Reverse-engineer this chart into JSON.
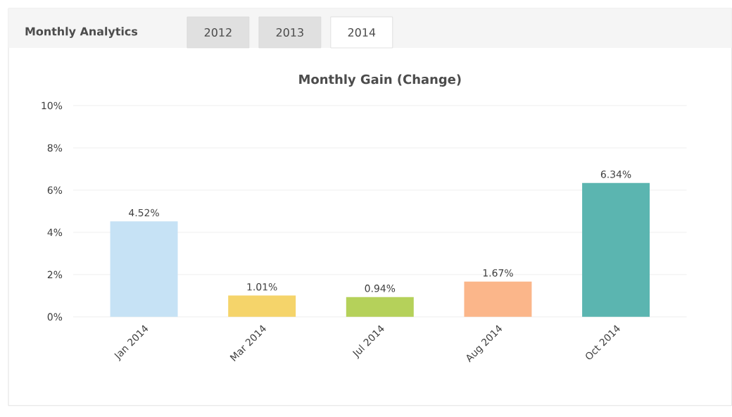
{
  "chart_data": {
    "type": "bar",
    "title": "Monthly Gain (Change)",
    "categories": [
      "Jan 2014",
      "Mar 2014",
      "Jul 2014",
      "Aug 2014",
      "Oct 2014"
    ],
    "values": [
      4.52,
      1.01,
      0.94,
      1.67,
      6.34
    ],
    "value_labels": [
      "4.52%",
      "1.01%",
      "0.94%",
      "1.67%",
      "6.34%"
    ],
    "colors": [
      "#c6e2f5",
      "#f5d46a",
      "#b5d15a",
      "#fbb68a",
      "#5bb5b0"
    ],
    "ylim": [
      0,
      10
    ],
    "yticks": [
      {
        "value": 0,
        "label": "0%"
      },
      {
        "value": 2,
        "label": "2%"
      },
      {
        "value": 4,
        "label": "4%"
      },
      {
        "value": 6,
        "label": "6%"
      },
      {
        "value": 8,
        "label": "8%"
      },
      {
        "value": 10,
        "label": "10%"
      }
    ],
    "grid": "y",
    "annotations": [
      "Monthly Analytics",
      "2012",
      "2013",
      "2014"
    ]
  }
}
